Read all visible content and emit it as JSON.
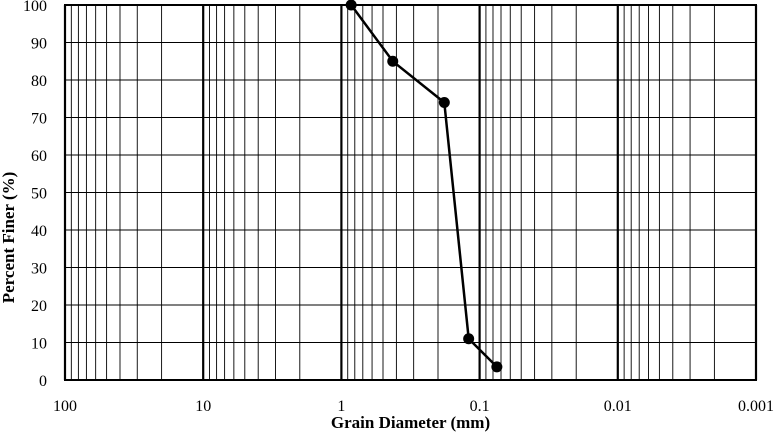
{
  "chart_data": {
    "type": "line",
    "xscale": "log",
    "xreversed": true,
    "xlim": [
      100,
      0.001
    ],
    "ylim": [
      0,
      100
    ],
    "ystep": 10,
    "grid": true,
    "xlabel": "Grain Diameter (mm)",
    "ylabel": "Percent Finer (%)",
    "x_tick_labels": [
      "100",
      "10",
      "1",
      "0.1",
      "0.01",
      "0.001"
    ],
    "y_tick_labels": [
      "0",
      "10",
      "20",
      "30",
      "40",
      "50",
      "60",
      "70",
      "80",
      "90",
      "100"
    ],
    "series": [
      {
        "marker": "circle",
        "color": "#000000",
        "points": [
          {
            "x": 0.85,
            "y": 100
          },
          {
            "x": 0.425,
            "y": 85
          },
          {
            "x": 0.18,
            "y": 74
          },
          {
            "x": 0.12,
            "y": 11
          },
          {
            "x": 0.075,
            "y": 3.5
          }
        ]
      }
    ]
  }
}
